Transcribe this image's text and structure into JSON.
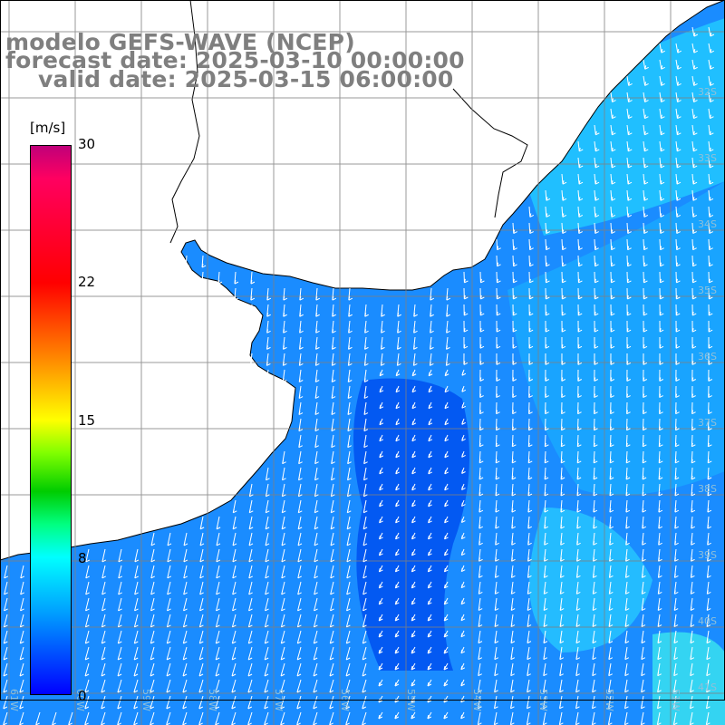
{
  "title": {
    "model": "modelo GEFS-WAVE (NCEP)",
    "forecast": "forecast date: 2025-03-10 00:00:00",
    "valid": "valid date: 2025-03-15 06:00:00"
  },
  "colorbar": {
    "unit": "[m/s]",
    "min": 0,
    "max": 30,
    "ticks": [
      "30",
      "22",
      "15",
      "8",
      "0"
    ],
    "colors": [
      "#0000ff",
      "#0040ff",
      "#00a0ff",
      "#00ffff",
      "#00ff80",
      "#00cc00",
      "#80ff00",
      "#ffff00",
      "#ff8000",
      "#ff0000",
      "#ff0060",
      "#c0007a"
    ]
  },
  "map": {
    "lat_labels": [
      "32S",
      "33S",
      "34S",
      "35S",
      "36S",
      "37S",
      "38S",
      "39S",
      "40S",
      "41S"
    ],
    "lon_labels": [
      "61W",
      "60W",
      "59W",
      "58W",
      "57W",
      "56W",
      "55W",
      "54W",
      "53W",
      "52W",
      "51W",
      "50W"
    ],
    "ocean_color": "#1a8cff",
    "land_color": "#ffffff",
    "grid_color": "#808080",
    "arrow_color": "#ffffff"
  }
}
